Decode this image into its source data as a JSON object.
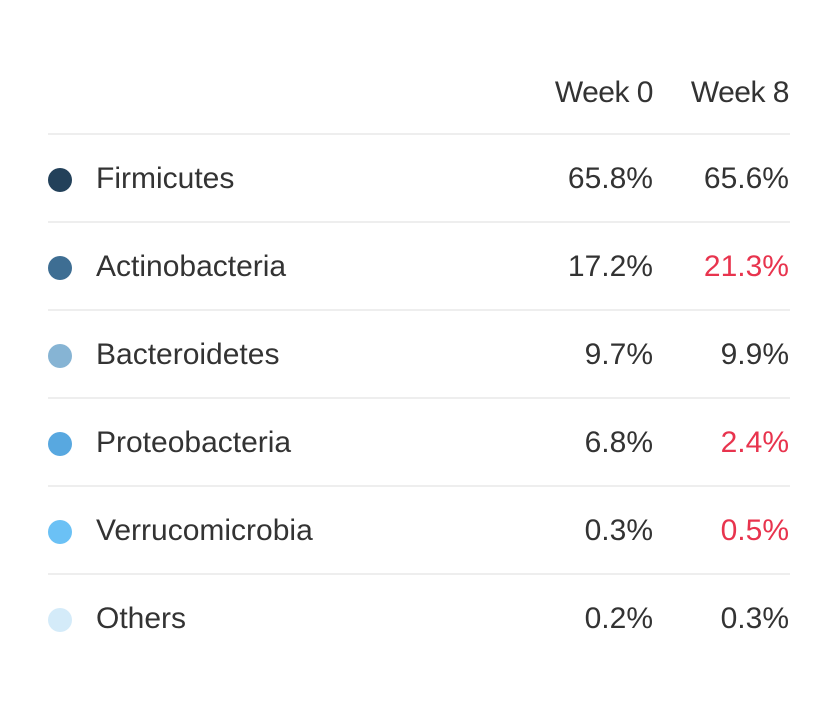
{
  "columns": {
    "week0": "Week 0",
    "week8": "Week 8"
  },
  "colors": {
    "changed": "#e8344e"
  },
  "rows": [
    {
      "name": "Firmicutes",
      "color": "#23415a",
      "week0": "65.8%",
      "week8": "65.6%",
      "week8_changed": false
    },
    {
      "name": "Actinobacteria",
      "color": "#3e6e93",
      "week0": "17.2%",
      "week8": "21.3%",
      "week8_changed": true
    },
    {
      "name": "Bacteroidetes",
      "color": "#86b4d4",
      "week0": "9.7%",
      "week8": "9.9%",
      "week8_changed": false
    },
    {
      "name": "Proteobacteria",
      "color": "#58a8e0",
      "week0": "6.8%",
      "week8": "2.4%",
      "week8_changed": true
    },
    {
      "name": "Verrucomicrobia",
      "color": "#6bc1f5",
      "week0": "0.3%",
      "week8": "0.5%",
      "week8_changed": true
    },
    {
      "name": "Others",
      "color": "#d4ebf9",
      "week0": "0.2%",
      "week8": "0.3%",
      "week8_changed": false
    }
  ]
}
